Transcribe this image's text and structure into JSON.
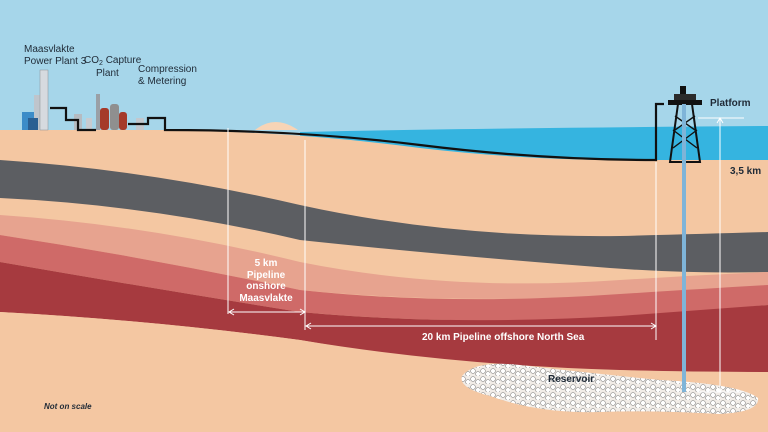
{
  "labels": {
    "power_plant": [
      "Maasvlakte",
      "Power Plant 3"
    ],
    "capture_prefix": "CO",
    "capture_sub": "2",
    "capture_suffix": "Capture",
    "capture_line2": "Plant",
    "compression": [
      "Compression",
      "& Metering"
    ],
    "platform": "Platform",
    "depth": "3,5  km",
    "onshore": [
      "5 km",
      "Pipeline",
      "onshore",
      "Maasvlakte"
    ],
    "offshore": "20 km Pipeline offshore North Sea",
    "reservoir": "Reservoir",
    "note": "Not on scale"
  },
  "colors": {
    "sky": "#a6d6ea",
    "sea": "#35b4e0",
    "sand": "#f4c7a2",
    "sand_light": "#f7d4b6",
    "grey_layer": "#5c5e62",
    "salmon": "#e7a38f",
    "red": "#cf6a68",
    "dark_red": "#a63a3f",
    "line": "#111111",
    "white": "#ffffff"
  }
}
